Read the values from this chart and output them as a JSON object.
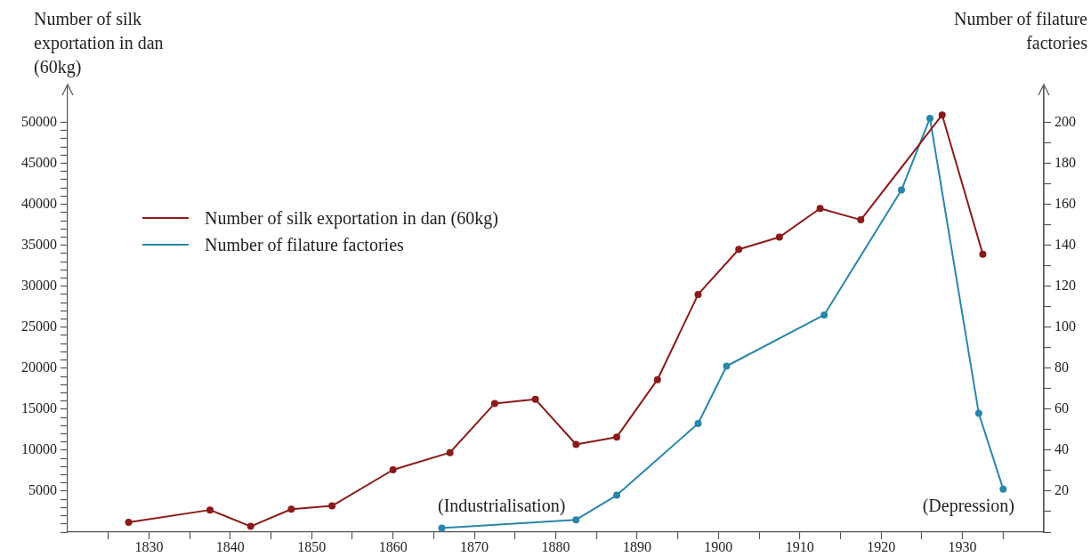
{
  "chart_data": {
    "type": "line",
    "ylabel": "Number of silk exportation in dan (60kg)",
    "y2label": "Number of filature factories",
    "legend": "top left",
    "marker": "circle",
    "xlim": [
      1820,
      1940
    ],
    "xticks": [
      {
        "value": 1825,
        "label": null
      },
      1830,
      {
        "value": 1835,
        "label": null
      },
      1840,
      {
        "value": 1845,
        "label": null
      },
      1850,
      {
        "value": 1855,
        "label": null
      },
      1860,
      {
        "value": 1865,
        "label": null
      },
      1870,
      {
        "value": 1875,
        "label": null
      },
      1880,
      {
        "value": 1885,
        "label": null
      },
      1890,
      {
        "value": 1895,
        "label": null
      },
      1900,
      {
        "value": 1905,
        "label": null
      },
      1910,
      {
        "value": 1915,
        "label": null
      },
      1920,
      {
        "value": 1925,
        "label": null
      },
      1930,
      {
        "value": 1935,
        "label": null
      }
    ],
    "ylim": [
      0,
      54400
    ],
    "yticks": [
      {
        "value": 0,
        "label": null
      },
      {
        "value": 1000,
        "label": null
      },
      {
        "value": 2000,
        "label": null
      },
      {
        "value": 3000,
        "label": null
      },
      {
        "value": 4000,
        "label": null
      },
      5000,
      {
        "value": 6000,
        "label": null
      },
      {
        "value": 7000,
        "label": null
      },
      {
        "value": 8000,
        "label": null
      },
      {
        "value": 9000,
        "label": null
      },
      10000,
      {
        "value": 11000,
        "label": null
      },
      {
        "value": 12000,
        "label": null
      },
      {
        "value": 13000,
        "label": null
      },
      {
        "value": 14000,
        "label": null
      },
      15000,
      {
        "value": 16000,
        "label": null
      },
      {
        "value": 17000,
        "label": null
      },
      {
        "value": 18000,
        "label": null
      },
      {
        "value": 19000,
        "label": null
      },
      20000,
      {
        "value": 21000,
        "label": null
      },
      {
        "value": 22000,
        "label": null
      },
      {
        "value": 23000,
        "label": null
      },
      {
        "value": 24000,
        "label": null
      },
      25000,
      {
        "value": 26000,
        "label": null
      },
      {
        "value": 27000,
        "label": null
      },
      {
        "value": 28000,
        "label": null
      },
      {
        "value": 29000,
        "label": null
      },
      30000,
      {
        "value": 31000,
        "label": null
      },
      {
        "value": 32000,
        "label": null
      },
      {
        "value": 33000,
        "label": null
      },
      {
        "value": 34000,
        "label": null
      },
      35000,
      {
        "value": 36000,
        "label": null
      },
      {
        "value": 37000,
        "label": null
      },
      {
        "value": 38000,
        "label": null
      },
      {
        "value": 39000,
        "label": null
      },
      40000,
      {
        "value": 41000,
        "label": null
      },
      {
        "value": 42000,
        "label": null
      },
      {
        "value": 43000,
        "label": null
      },
      {
        "value": 44000,
        "label": null
      },
      45000,
      {
        "value": 46000,
        "label": null
      },
      {
        "value": 47000,
        "label": null
      },
      {
        "value": 48000,
        "label": null
      },
      {
        "value": 49000,
        "label": null
      },
      50000
    ],
    "y2lim": [
      0,
      217.6
    ],
    "y2ticks": [
      {
        "value": 0,
        "label": null
      },
      {
        "value": 10,
        "label": null
      },
      20,
      {
        "value": 30,
        "label": null
      },
      40,
      {
        "value": 50,
        "label": null
      },
      60,
      {
        "value": 70,
        "label": null
      },
      80,
      {
        "value": 90,
        "label": null
      },
      100,
      {
        "value": 110,
        "label": null
      },
      120,
      {
        "value": 130,
        "label": null
      },
      140,
      {
        "value": 150,
        "label": null
      },
      160,
      {
        "value": 170,
        "label": null
      },
      180,
      {
        "value": 190,
        "label": null
      },
      200
    ],
    "series": [
      {
        "name": "Number of silk exportation in dan (60kg)",
        "color": "#8b1a1a",
        "x": [
          1827.5,
          1837.5,
          1842.5,
          1847.5,
          1852.5,
          1860,
          1867,
          1872.5,
          1877.5,
          1882.5,
          1887.5,
          1892.5,
          1897.5,
          1902.5,
          1907.5,
          1912.5,
          1917.5,
          1927.5,
          1932.5
        ],
        "values": [
          1200,
          2700,
          700,
          2800,
          3200,
          7600,
          9700,
          15700,
          16200,
          10700,
          11600,
          18600,
          29000,
          34500,
          36000,
          39500,
          38100,
          50900,
          33900
        ]
      },
      {
        "name": "Number of filature factories",
        "color": "#2a86a8",
        "axis": "y2",
        "x": [
          1866,
          1882.5,
          1887.5,
          1897.5,
          1901,
          1913,
          1922.5,
          1926,
          1932,
          1935
        ],
        "values": [
          2,
          6,
          18,
          53,
          81,
          106,
          167,
          202,
          58,
          21
        ]
      }
    ],
    "annotations": [
      "(Industrialisation)",
      "(Depression)"
    ]
  }
}
